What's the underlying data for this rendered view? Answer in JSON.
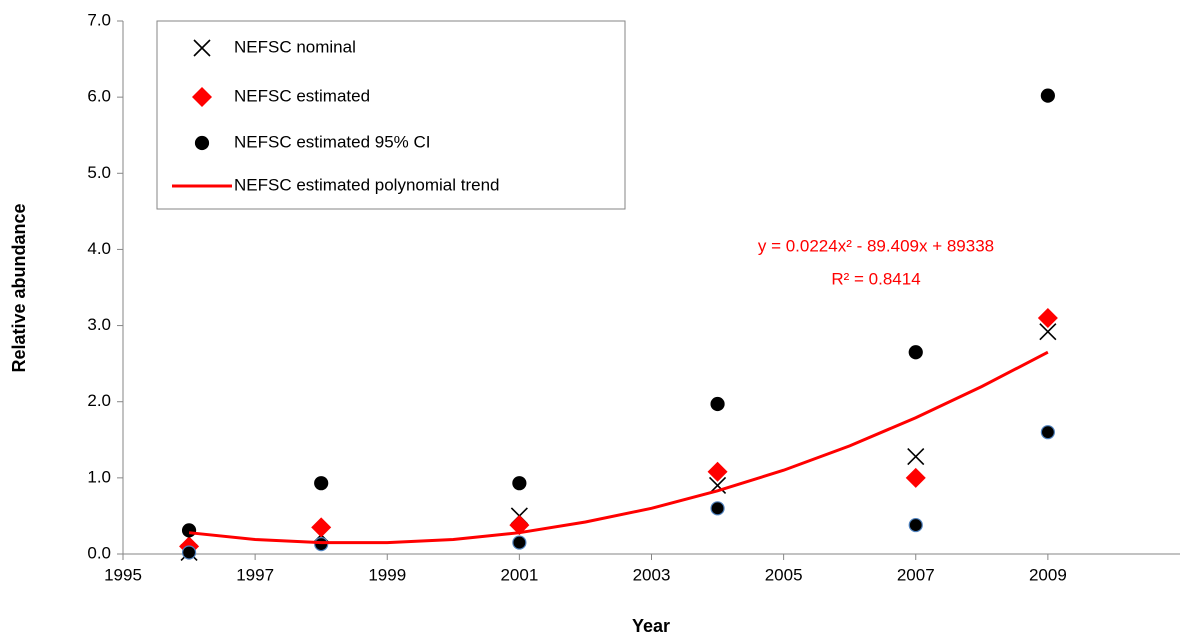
{
  "chart_data": {
    "type": "scatter",
    "x_label": "Year",
    "y_label": "Relative abundance",
    "x": [
      1996,
      1998,
      2001,
      2004,
      2007,
      2009
    ],
    "series": [
      {
        "name": "NEFSC nominal",
        "color": "#000000",
        "marker": "x",
        "values": [
          0.02,
          0.25,
          0.5,
          0.9,
          1.28,
          2.92
        ]
      },
      {
        "name": "NEFSC estimated",
        "color": "#ff0000",
        "marker": "diamond",
        "values": [
          0.1,
          0.35,
          0.38,
          1.08,
          1.0,
          3.1
        ]
      },
      {
        "name": "NEFSC estimated 95% CI",
        "color": "#000000",
        "edgecolor": "#4f81bd",
        "marker": "circle",
        "lower": [
          0.02,
          0.13,
          0.15,
          0.6,
          0.38,
          1.6
        ],
        "upper": [
          0.31,
          0.93,
          0.93,
          1.97,
          2.65,
          6.02
        ]
      },
      {
        "name": "NEFSC estimated polynomial trend",
        "color": "#ff0000",
        "marker": "line",
        "x": [
          1996,
          1997,
          1998,
          1999,
          2000,
          2001,
          2002,
          2003,
          2004,
          2005,
          2006,
          2007,
          2008,
          2009
        ],
        "values": [
          0.28,
          0.19,
          0.15,
          0.15,
          0.19,
          0.28,
          0.42,
          0.6,
          0.83,
          1.1,
          1.42,
          1.79,
          2.2,
          2.65
        ]
      }
    ],
    "annotations": [
      "y = 0.0224x² - 89.409x + 89338",
      "R² = 0.8414"
    ],
    "xlim": [
      1995,
      2011
    ],
    "xticks": [
      1995,
      1997,
      1999,
      2001,
      2003,
      2005,
      2007,
      2009
    ],
    "ylim": [
      0,
      7
    ],
    "yticks": [
      {
        "value": 0,
        "label": "0.0"
      },
      {
        "value": 1,
        "label": "1.0"
      },
      {
        "value": 2,
        "label": "2.0"
      },
      {
        "value": 3,
        "label": "3.0"
      },
      {
        "value": 4,
        "label": "4.0"
      },
      {
        "value": 5,
        "label": "5.0"
      },
      {
        "value": 6,
        "label": "6.0"
      },
      {
        "value": 7,
        "label": "7.0"
      }
    ],
    "grid": false,
    "legend": "upper left"
  }
}
